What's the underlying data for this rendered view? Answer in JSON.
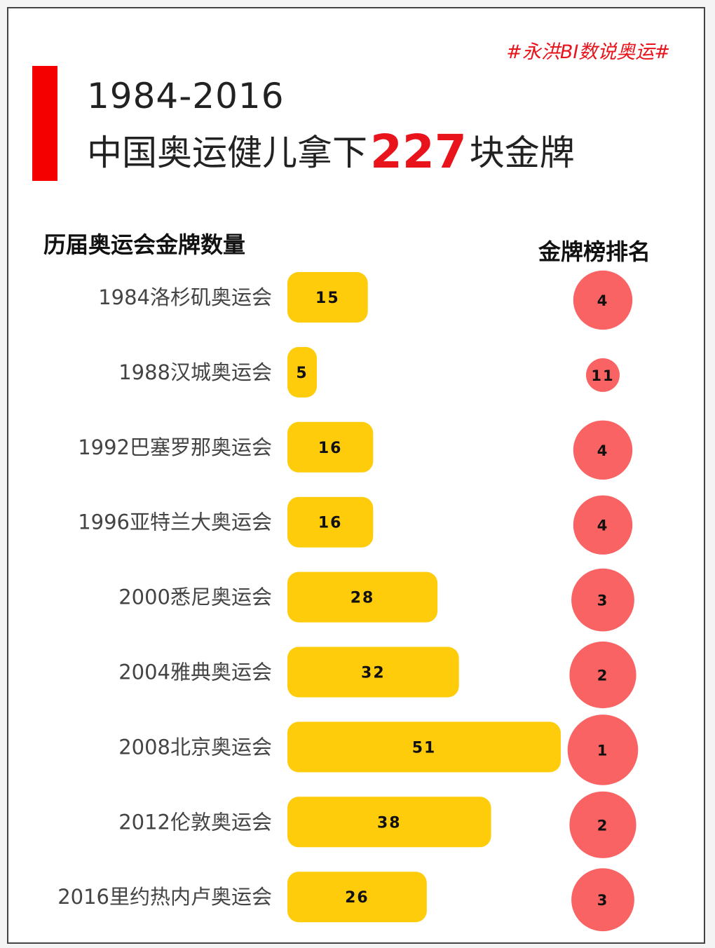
{
  "hashtag": "#永洪BI数说奥运#",
  "title": {
    "line1": "1984-2016",
    "line2_prefix": "中国奥运健儿拿下",
    "line2_highlight": "227",
    "line2_suffix": "块金牌"
  },
  "headers": {
    "left": "历届奥运会金牌数量",
    "right": "金牌榜排名"
  },
  "colors": {
    "accent_red": "#f40000",
    "bar": "#fecc0a",
    "rank_circle": "#f96363"
  },
  "chart_data": {
    "type": "bar",
    "orientation": "horizontal",
    "categories": [
      "1984洛杉矶奥运会",
      "1988汉城奥运会",
      "1992巴塞罗那奥运会",
      "1996亚特兰大奥运会",
      "2000悉尼奥运会",
      "2004雅典奥运会",
      "2008北京奥运会",
      "2012伦敦奥运会",
      "2016里约热内卢奥运会"
    ],
    "series": [
      {
        "name": "历届奥运会金牌数量",
        "values": [
          15,
          5,
          16,
          16,
          28,
          32,
          51,
          38,
          26
        ]
      },
      {
        "name": "金牌榜排名",
        "values": [
          4,
          11,
          4,
          4,
          3,
          2,
          1,
          2,
          3
        ]
      }
    ],
    "grid": false,
    "legend": "none"
  }
}
